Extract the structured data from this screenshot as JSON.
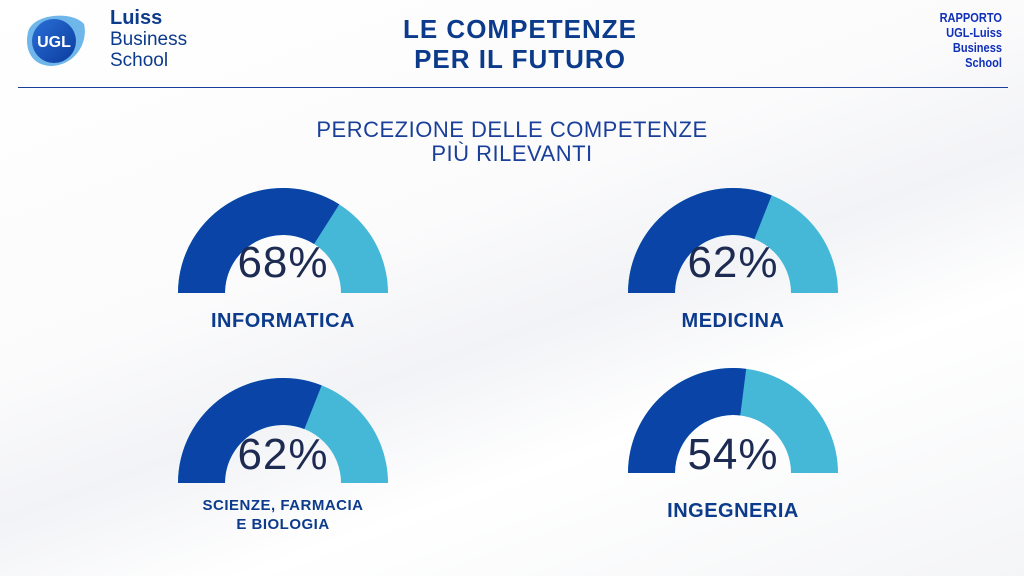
{
  "header": {
    "logo_ugl": "UGL",
    "luiss_line1": "Luiss",
    "luiss_line2": "Business",
    "luiss_line3": "School",
    "title_line1": "LE COMPETENZE",
    "title_line2": "PER IL FUTURO",
    "report_lines": [
      "RAPPORTO",
      "UGL-Luiss",
      "Business",
      "School"
    ]
  },
  "colors": {
    "dark_blue": "#0a44a6",
    "light_blue": "#45b8d8",
    "title_blue": "#0d3b8c"
  },
  "chart_data": {
    "type": "gauge",
    "title_line1": "PERCEZIONE DELLE COMPETENZE",
    "title_line2": "PIÙ RILEVANTI",
    "items": [
      {
        "label": "INFORMATICA",
        "value": 68,
        "display": "68%"
      },
      {
        "label": "MEDICINA",
        "value": 62,
        "display": "62%"
      },
      {
        "label_line1": "SCIENZE, FARMACIA",
        "label_line2": "E BIOLOGIA",
        "value": 62,
        "display": "62%"
      },
      {
        "label": "INGEGNERIA",
        "value": 54,
        "display": "54%"
      }
    ]
  }
}
